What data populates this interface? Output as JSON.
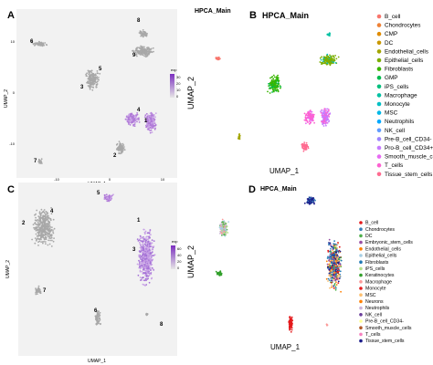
{
  "panels": [
    {
      "letter": "A",
      "xlabel": "UMAP_1",
      "ylabel": "UMAP_2",
      "legend_title": "exp",
      "legend_ticks": [
        "30",
        "20",
        "10",
        "0"
      ],
      "x_ticks": [
        "-10",
        "0",
        "10"
      ],
      "y_ticks": [
        "10",
        "0",
        "-10"
      ],
      "side_label": "UMAP_2",
      "cluster_labels": [
        "1",
        "2",
        "3",
        "4",
        "5",
        "6",
        "7",
        "8",
        "9"
      ]
    },
    {
      "letter": "B",
      "title": "HPCA_Main",
      "xlabel": "UMAP_1",
      "legend": [
        {
          "label": "B_cell",
          "color": "#f8766d"
        },
        {
          "label": "Chondrocytes",
          "color": "#ee8236"
        },
        {
          "label": "CMP",
          "color": "#e08b00"
        },
        {
          "label": "DC",
          "color": "#c99800"
        },
        {
          "label": "Endothelial_cells",
          "color": "#a3a500"
        },
        {
          "label": "Epithelial_cells",
          "color": "#7cae00"
        },
        {
          "label": "Fibroblasts",
          "color": "#39b600"
        },
        {
          "label": "GMP",
          "color": "#00bb4e"
        },
        {
          "label": "iPS_cells",
          "color": "#00bf7d"
        },
        {
          "label": "Macrophage",
          "color": "#00c1a3"
        },
        {
          "label": "Monocyte",
          "color": "#00bfc4"
        },
        {
          "label": "MSC",
          "color": "#00b8e7"
        },
        {
          "label": "Neutrophils",
          "color": "#00a9ff"
        },
        {
          "label": "NK_cell",
          "color": "#619cff"
        },
        {
          "label": "Pre-B_cell_CD34-",
          "color": "#9e85ff"
        },
        {
          "label": "Pro-B_cell_CD34+",
          "color": "#c77cff"
        },
        {
          "label": "Smooth_muscle_cells",
          "color": "#e76bf3"
        },
        {
          "label": "T_cells",
          "color": "#fd61d1"
        },
        {
          "label": "Tissue_stem_cells",
          "color": "#ff6c91"
        }
      ]
    },
    {
      "letter": "C",
      "xlabel": "UMAP_1",
      "ylabel": "UMAP_2",
      "legend_title": "exp",
      "legend_ticks": [
        "60",
        "40",
        "20",
        "0"
      ],
      "side_label": "UMAP_2",
      "cluster_labels": [
        "1",
        "2",
        "3",
        "4",
        "5",
        "6",
        "7",
        "8"
      ]
    },
    {
      "letter": "D",
      "title": "HPCA_Main",
      "xlabel": "UMAP_1",
      "legend": [
        {
          "label": "B_cell",
          "color": "#e41a1c"
        },
        {
          "label": "Chondrocytes",
          "color": "#377eb8"
        },
        {
          "label": "DC",
          "color": "#4daf4a"
        },
        {
          "label": "Embryonic_stem_cells",
          "color": "#984ea3"
        },
        {
          "label": "Endothelial_cells",
          "color": "#ff7f00"
        },
        {
          "label": "Epithelial_cells",
          "color": "#a6cee3"
        },
        {
          "label": "Fibroblasts",
          "color": "#1f78b4"
        },
        {
          "label": "iPS_cells",
          "color": "#b2df8a"
        },
        {
          "label": "Keratinocytes",
          "color": "#33a02c"
        },
        {
          "label": "Macrophage",
          "color": "#fb9a99"
        },
        {
          "label": "Monocyte",
          "color": "#e31a1c"
        },
        {
          "label": "MSC",
          "color": "#fdbf6f"
        },
        {
          "label": "Neurons",
          "color": "#ff7f00"
        },
        {
          "label": "Neutrophils",
          "color": "#cab2d6"
        },
        {
          "label": "NK_cell",
          "color": "#6a3d9a"
        },
        {
          "label": "Pre-B_cell_CD34-",
          "color": "#ffff99"
        },
        {
          "label": "Smooth_muscle_cells",
          "color": "#b15928"
        },
        {
          "label": "T_cells",
          "color": "#f781bf"
        },
        {
          "label": "Tissue_stem_cells",
          "color": "#1b1b8a"
        }
      ]
    }
  ],
  "chart_data": [
    {
      "type": "scatter",
      "title": "",
      "xlabel": "UMAP_1",
      "ylabel": "UMAP_2",
      "x_ticks": [
        -10,
        0,
        10
      ],
      "y_ticks": [
        -10,
        0,
        10
      ],
      "colorbar": {
        "title": "exp",
        "range": [
          0,
          30
        ]
      },
      "clusters": [
        "1",
        "2",
        "3",
        "4",
        "5",
        "6",
        "7",
        "8",
        "9"
      ]
    },
    {
      "type": "scatter",
      "title": "HPCA_Main",
      "xlabel": "UMAP_1",
      "ylabel": "",
      "series_from_legend": true
    },
    {
      "type": "scatter",
      "title": "",
      "xlabel": "UMAP_1",
      "ylabel": "UMAP_2",
      "colorbar": {
        "title": "exp",
        "range": [
          0,
          60
        ]
      },
      "clusters": [
        "1",
        "2",
        "3",
        "4",
        "5",
        "6",
        "7",
        "8"
      ]
    },
    {
      "type": "scatter",
      "title": "HPCA_Main",
      "xlabel": "UMAP_1",
      "ylabel": "",
      "series_from_legend": true
    }
  ]
}
